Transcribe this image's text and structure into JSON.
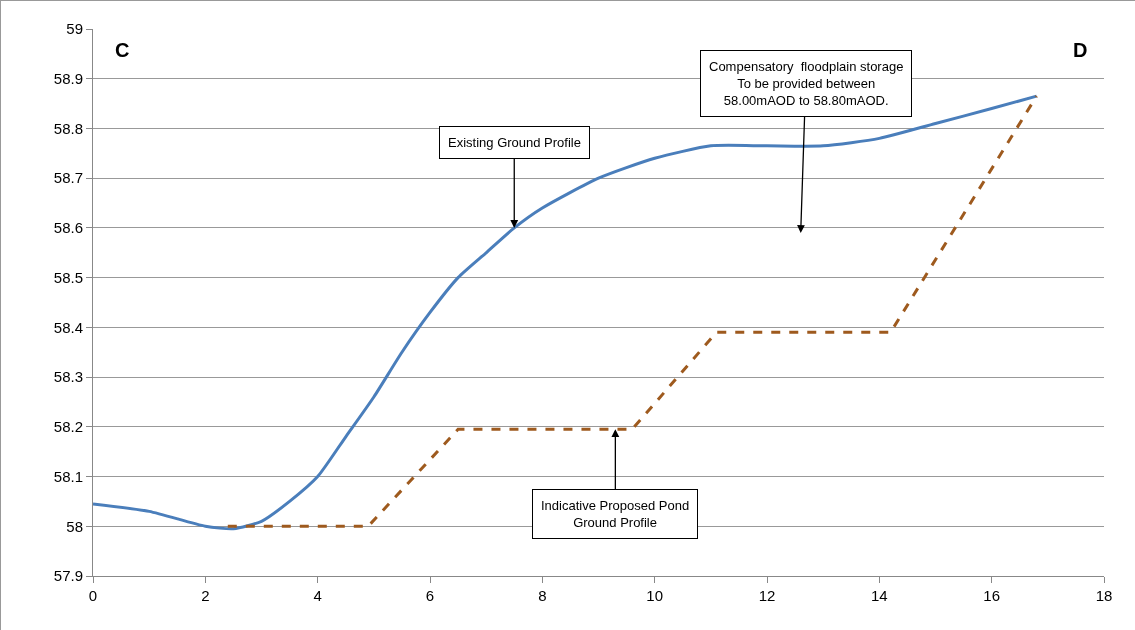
{
  "chart_data": {
    "type": "line",
    "series": [
      {
        "color": "#4a7ebb",
        "line_style": "solid",
        "x": [
          0,
          1,
          2,
          2.5,
          3,
          3.5,
          4,
          4.5,
          5,
          5.5,
          6,
          6.5,
          7,
          7.5,
          8,
          9,
          10,
          11,
          12,
          13,
          14,
          15,
          16,
          16.8
        ],
        "values": [
          58.045,
          58.03,
          58.0,
          57.995,
          58.01,
          58.05,
          58.1,
          58.18,
          58.26,
          58.35,
          58.43,
          58.5,
          58.55,
          58.6,
          58.64,
          58.7,
          58.74,
          58.765,
          58.765,
          58.765,
          58.78,
          58.81,
          58.84,
          58.865
        ]
      },
      {
        "color": "#9e5a1e",
        "line_style": "dashed",
        "x": [
          2.4,
          4.9,
          6.5,
          9.6,
          11.1,
          14.2,
          16.8
        ],
        "values": [
          58.0,
          58.0,
          58.195,
          58.195,
          58.39,
          58.39,
          58.865
        ]
      }
    ],
    "xlim": [
      0,
      18
    ],
    "xticks": [
      0,
      2,
      4,
      6,
      8,
      10,
      12,
      14,
      16,
      18
    ],
    "ylim": [
      57.9,
      59
    ],
    "yticks": [
      57.9,
      58,
      58.1,
      58.2,
      58.3,
      58.4,
      58.5,
      58.6,
      58.7,
      58.8,
      58.9,
      59
    ],
    "grid": "y",
    "marker": "none",
    "annotations": [
      "C",
      "D",
      {
        "text": "Existing Ground Profile",
        "x": 7.5,
        "y": 58.6
      },
      "Compensatory  floodplain storage\nTo be provided between\n58.00mAOD to 58.80mAOD.",
      {
        "text": "Indicative Proposed Pond\nGround Profile",
        "x": 9.3,
        "y": 58.195
      }
    ]
  }
}
